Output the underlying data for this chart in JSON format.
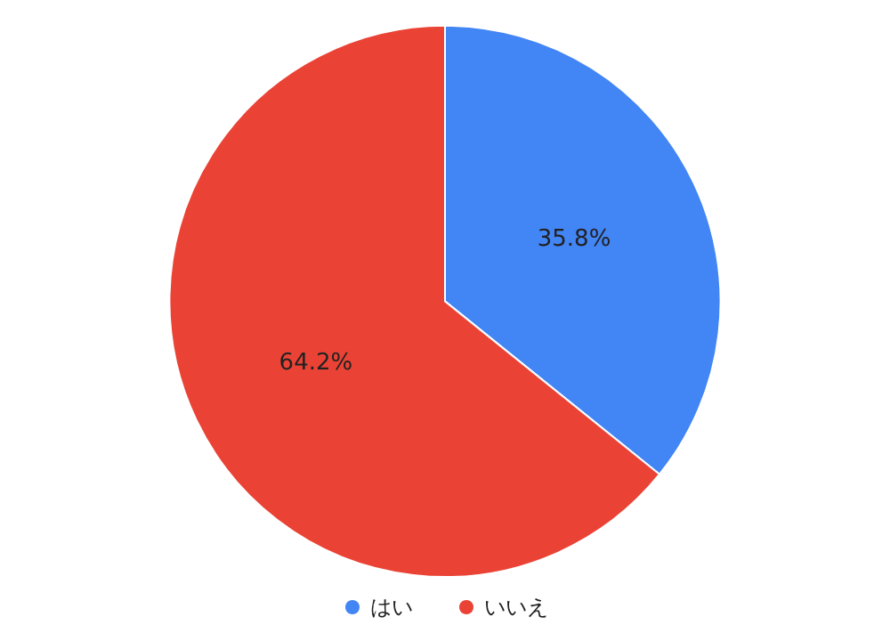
{
  "chart_data": {
    "type": "pie",
    "categories": [
      "はい",
      "いいえ"
    ],
    "values": [
      35.8,
      64.2
    ],
    "colors": [
      "#4285f4",
      "#ea4335"
    ],
    "value_labels": [
      "35.8%",
      "64.2%"
    ],
    "legend": "bottom"
  }
}
